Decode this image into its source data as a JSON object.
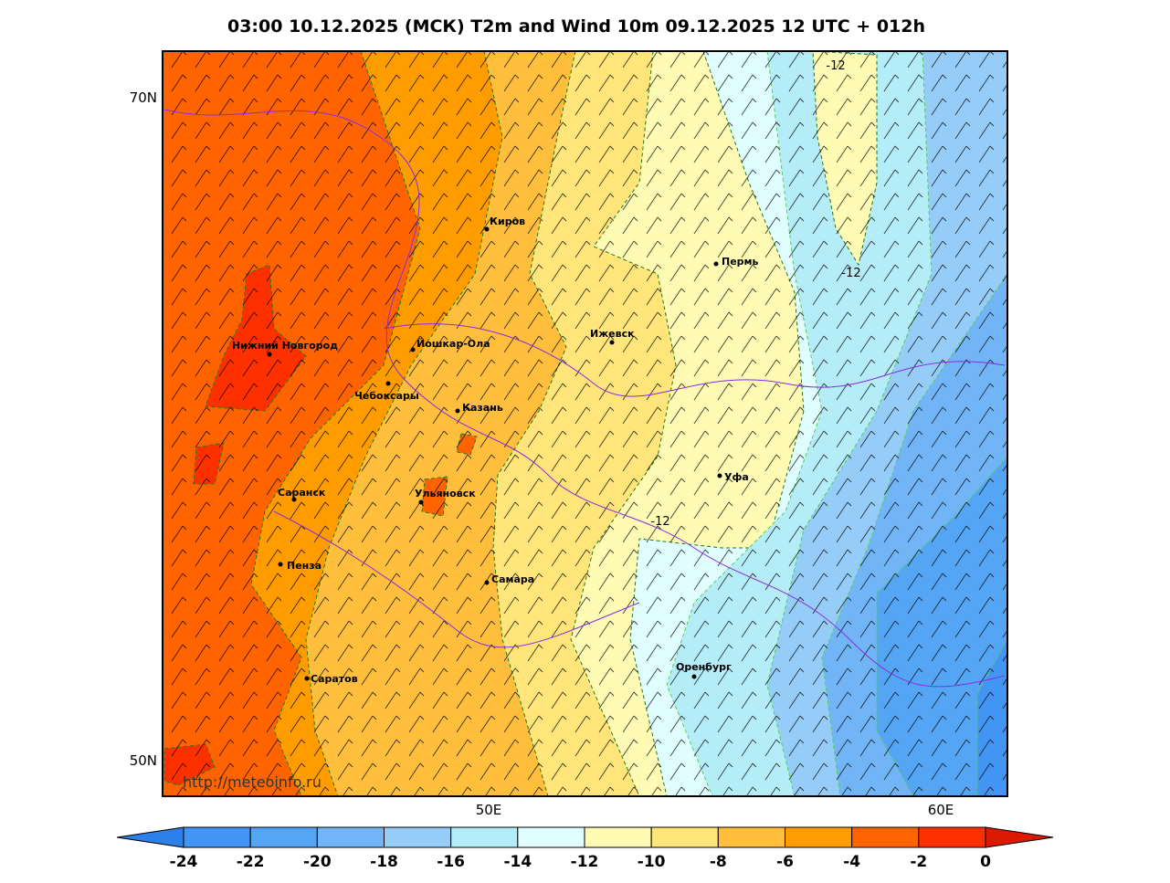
{
  "title": "03:00 10.12.2025 (МСК) T2m and Wind 10m 09.12.2025 12 UTC + 012h",
  "axes": {
    "y_labels": [
      "70N",
      "50N"
    ],
    "x_labels": [
      "50E",
      "60E"
    ]
  },
  "cities": [
    "Киров",
    "Пермь",
    "Нижний Новгород",
    "Йошкар-Ола",
    "Ижевск",
    "Чебоксары",
    "Казань",
    "Саранск",
    "Ульяновск",
    "Уфа",
    "Пенза",
    "Самара",
    "Оренбург",
    "Саратов"
  ],
  "contour_labels": [
    "-12",
    "-12",
    "-12"
  ],
  "watermark": "http://meteoinfo.ru",
  "colorbar": {
    "ticks": [
      -24,
      -22,
      -20,
      -18,
      -16,
      -14,
      -12,
      -10,
      -8,
      -6,
      -4,
      -2,
      0
    ],
    "colors": [
      "#4295f2",
      "#55a5f5",
      "#72b5f7",
      "#96cdf8",
      "#b4ecf8",
      "#e0feff",
      "#fffab4",
      "#ffe57a",
      "#ffbe3c",
      "#ff9c00",
      "#ff6400",
      "#ff3000"
    ],
    "under_color": "#2c80ea",
    "over_color": "#dd1a00"
  }
}
